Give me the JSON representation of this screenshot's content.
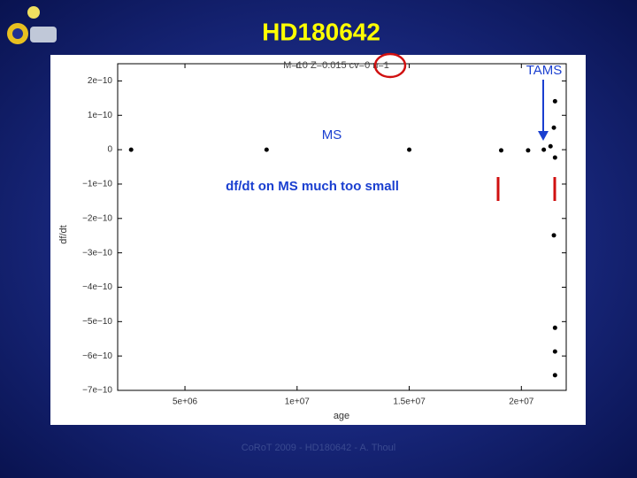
{
  "chart_data": {
    "type": "scatter",
    "title": "HD180642",
    "subtitle": "M=10 Z=0.015 cv=0 n=1",
    "x_label": "age",
    "y_label": "df/dt",
    "annotations": [
      "TAMS",
      "MS",
      "df/dt on MS much too small"
    ],
    "footer": "CoRoT 2009 - HD180642 - A. Thoul",
    "color": "#000000",
    "x": [
      2600000,
      8640000,
      15000000,
      19100000,
      20300000,
      21000000,
      21300000,
      21500000,
      21450000,
      21500000,
      21450000,
      21500000,
      21500000,
      21500000
    ],
    "values": [
      0,
      0,
      0,
      -2e-12,
      -2e-12,
      0,
      1e-11,
      1.41e-10,
      6.4e-11,
      -2.3e-11,
      -2.49e-10,
      -5.18e-10,
      -5.87e-10,
      -6.56e-10
    ],
    "xlim": [
      2000000,
      22000000
    ],
    "ylim": [
      -7e-10,
      2.5e-10
    ],
    "xticks": [
      {
        "value": 5000000,
        "label": "5e+06"
      },
      {
        "value": 10000000,
        "label": "1e+07"
      },
      {
        "value": 15000000,
        "label": "1.5e+07"
      },
      {
        "value": 20000000,
        "label": "2e+07"
      }
    ],
    "yticks": [
      {
        "value": 2e-10,
        "label": "2e−10"
      },
      {
        "value": 1e-10,
        "label": "1e−10"
      },
      0,
      {
        "value": -1e-10,
        "label": "−1e−10"
      },
      {
        "value": -2e-10,
        "label": "−2e−10"
      },
      {
        "value": -3e-10,
        "label": "−3e−10"
      },
      {
        "value": -4e-10,
        "label": "−4e−10"
      },
      {
        "value": -5e-10,
        "label": "−5e−10"
      },
      {
        "value": -6e-10,
        "label": "−6e−10"
      },
      {
        "value": -7e-10,
        "label": "−7e−10"
      }
    ],
    "grid": false
  }
}
